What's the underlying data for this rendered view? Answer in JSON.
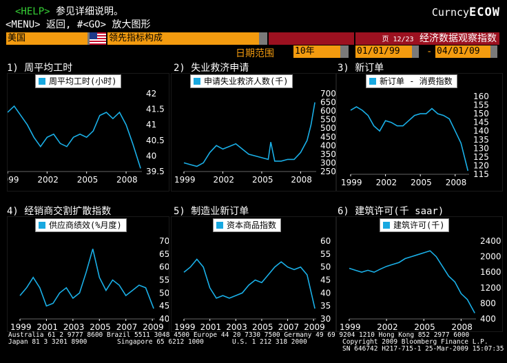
{
  "header": {
    "help_key": "<HELP>",
    "help_text": "参见详细说明。",
    "menu_key": "<MENU>",
    "menu_text": "返回,",
    "go_key": "#<GO>",
    "go_text": "放大图形",
    "market": "Curncy",
    "ticker": "ECOW"
  },
  "toolbar": {
    "country": "美国",
    "indicator": "领先指标构成",
    "page": "页 12/23",
    "screen_title": "经济数据观察指数",
    "date_range_label": "日期范围",
    "period": "10年",
    "start_date": "01/01/99",
    "dash": "-",
    "end_date": "04/01/09"
  },
  "panels": [
    {
      "title": "1) 周平均工时",
      "legend": "周平均工时(小时)"
    },
    {
      "title": "2) 失业救济申请",
      "legend": "申请失业救济人数(千)"
    },
    {
      "title": "3) 新订单",
      "legend": "新订单 - 消费指数"
    },
    {
      "title": "4) 经销商交割扩散指数",
      "legend": "供应商绩效(%月度)"
    },
    {
      "title": "5) 制造业新订单",
      "legend": "资本商品指数"
    },
    {
      "title": "6) 建筑许可(千 saar)",
      "legend": "建筑许可(千)"
    }
  ],
  "chart_data": [
    {
      "type": "line",
      "series": [
        {
          "name": "周平均工时(小时)",
          "x": [
            1999,
            1999.5,
            2000,
            2000.5,
            2001,
            2001.5,
            2002,
            2002.5,
            2003,
            2003.5,
            2004,
            2004.5,
            2005,
            2005.5,
            2006,
            2006.5,
            2007,
            2007.5,
            2008,
            2008.5,
            2009.1
          ],
          "values": [
            41.4,
            41.6,
            41.3,
            41.0,
            40.6,
            40.3,
            40.6,
            40.7,
            40.4,
            40.3,
            40.6,
            40.7,
            40.6,
            40.8,
            41.3,
            41.4,
            41.2,
            41.4,
            41.0,
            40.4,
            39.6
          ]
        }
      ],
      "x_ticks": [
        "1999",
        "2002",
        "2005",
        "2008"
      ],
      "y_ticks": [
        "42",
        "41.5",
        "41",
        "40.5",
        "40",
        "39.5"
      ],
      "ylim": [
        39.5,
        42
      ],
      "xlim": [
        1999,
        2009.2
      ]
    },
    {
      "type": "line",
      "series": [
        {
          "name": "申请失业救济人数(千)",
          "x": [
            1999,
            1999.5,
            2000,
            2000.5,
            2001,
            2001.5,
            2002,
            2002.5,
            2003,
            2003.5,
            2004,
            2004.5,
            2005,
            2005.5,
            2005.7,
            2006,
            2006.5,
            2007,
            2007.5,
            2008,
            2008.5,
            2008.8,
            2009.1
          ],
          "values": [
            300,
            290,
            280,
            300,
            360,
            400,
            380,
            395,
            410,
            380,
            350,
            340,
            330,
            320,
            420,
            310,
            310,
            320,
            320,
            360,
            430,
            520,
            650
          ]
        }
      ],
      "x_ticks": [
        "1999",
        "2002",
        "2005",
        "2008"
      ],
      "y_ticks": [
        "700",
        "650",
        "600",
        "550",
        "500",
        "450",
        "400",
        "350",
        "300",
        "250"
      ],
      "ylim": [
        250,
        700
      ],
      "xlim": [
        1999,
        2009.2
      ]
    },
    {
      "type": "line",
      "series": [
        {
          "name": "新订单 - 消费指数",
          "x": [
            1999,
            1999.5,
            2000,
            2000.5,
            2001,
            2001.5,
            2002,
            2002.5,
            2003,
            2003.5,
            2004,
            2004.5,
            2005,
            2005.5,
            2006,
            2006.5,
            2007,
            2007.5,
            2008,
            2008.5,
            2009.1
          ],
          "values": [
            152,
            154,
            152,
            149,
            143,
            140,
            146,
            145,
            143,
            143,
            146,
            149,
            150,
            150,
            153,
            150,
            149,
            147,
            140,
            133,
            117
          ]
        }
      ],
      "x_ticks": [
        "1999",
        "2002",
        "2005",
        "2008"
      ],
      "y_ticks": [
        "160",
        "155",
        "150",
        "145",
        "140",
        "135",
        "130",
        "125",
        "120",
        "115"
      ],
      "ylim": [
        115,
        160
      ],
      "xlim": [
        1999,
        2009.2
      ]
    },
    {
      "type": "line",
      "series": [
        {
          "name": "供应商绩效(%月度)",
          "x": [
            1999,
            1999.5,
            2000,
            2000.5,
            2001,
            2001.5,
            2002,
            2002.5,
            2003,
            2003.5,
            2004,
            2004.5,
            2005,
            2005.5,
            2006,
            2006.5,
            2007,
            2007.5,
            2008,
            2008.5,
            2009.1
          ],
          "values": [
            49,
            52,
            56,
            52,
            45,
            46,
            50,
            52,
            48,
            50,
            58,
            67,
            56,
            51,
            55,
            53,
            49,
            51,
            53,
            52,
            44
          ]
        }
      ],
      "x_ticks": [
        "1999",
        "2001",
        "2003",
        "2005",
        "2007",
        "2009"
      ],
      "y_ticks": [
        "70",
        "65",
        "60",
        "55",
        "50",
        "45",
        "40"
      ],
      "ylim": [
        40,
        70
      ],
      "xlim": [
        1999,
        2009.2
      ]
    },
    {
      "type": "line",
      "series": [
        {
          "name": "资本商品指数",
          "x": [
            1999,
            1999.5,
            2000,
            2000.5,
            2001,
            2001.5,
            2002,
            2002.5,
            2003,
            2003.5,
            2004,
            2004.5,
            2005,
            2005.5,
            2006,
            2006.5,
            2007,
            2007.5,
            2008,
            2008.5,
            2009.1
          ],
          "values": [
            48,
            50,
            53,
            50,
            42,
            38,
            39,
            38,
            39,
            40,
            43,
            45,
            44,
            47,
            50,
            52,
            50,
            49,
            50,
            47,
            34
          ]
        }
      ],
      "x_ticks": [
        "1999",
        "2001",
        "2003",
        "2005",
        "2007",
        "2009"
      ],
      "y_ticks": [
        "60",
        "55",
        "50",
        "45",
        "40",
        "35",
        "30"
      ],
      "ylim": [
        30,
        60
      ],
      "xlim": [
        1999,
        2009.2
      ]
    },
    {
      "type": "line",
      "series": [
        {
          "name": "建筑许可(千)",
          "x": [
            1999,
            1999.5,
            2000,
            2000.5,
            2001,
            2001.5,
            2002,
            2002.5,
            2003,
            2003.5,
            2004,
            2004.5,
            2005,
            2005.5,
            2006,
            2006.5,
            2007,
            2007.5,
            2008,
            2008.5,
            2009.1
          ],
          "values": [
            1700,
            1650,
            1600,
            1650,
            1600,
            1680,
            1750,
            1800,
            1850,
            1950,
            2000,
            2050,
            2100,
            2150,
            2000,
            1750,
            1500,
            1350,
            1050,
            900,
            550
          ]
        }
      ],
      "x_ticks": [
        "1999",
        "2002",
        "2005",
        "2008"
      ],
      "y_ticks": [
        "2400",
        "2000",
        "1600",
        "1200",
        "800",
        "400"
      ],
      "ylim": [
        400,
        2400
      ],
      "xlim": [
        1999,
        2009.2
      ]
    }
  ],
  "footer": {
    "line1": "Australia 61 2 9777 8600 Brazil 5511 3048 4500 Europe 44 20 7330 7500 Germany 49 69 9204 1210 Hong Kong 852 2977 6000",
    "line2a": "Japan 81 3 3201 8900",
    "line2b": "Singapore 65 6212 1000",
    "line2c": "U.S. 1 212 318 2000",
    "line2d": "Copyright 2009 Bloomberg Finance L.P.",
    "line3": "SN 646742 H217-715-1 25-Mar-2009 15:07:35"
  },
  "colors": {
    "accent": "#f39b0f",
    "line": "#1ab0e8",
    "header_red": "#9c1120",
    "help_green": "#36d236"
  }
}
